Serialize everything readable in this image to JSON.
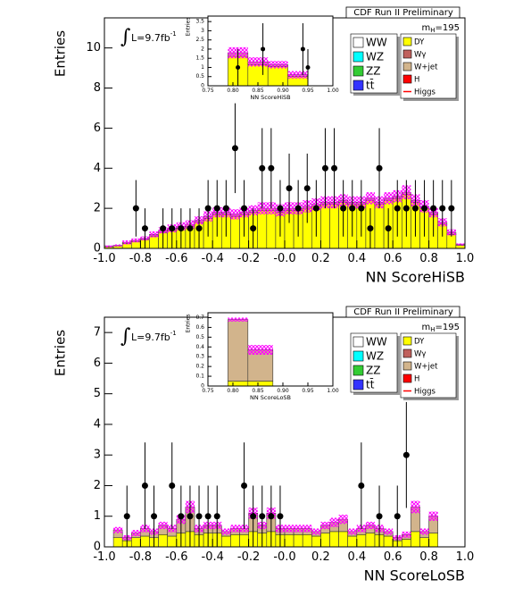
{
  "chart_data": [
    {
      "type": "histogram",
      "title": "CDF Run II Preliminary",
      "xlabel": "NN ScoreHiSB",
      "ylabel": "Entries",
      "luminosity": [
        "∫",
        "L=9.7fb",
        "-1"
      ],
      "mass": [
        "m",
        "H",
        "=195"
      ],
      "legend": "upper right",
      "bins": [
        -1,
        -0.95,
        -0.9,
        -0.85,
        -0.8,
        -0.75,
        -0.7,
        -0.65,
        -0.6,
        -0.55,
        -0.5,
        -0.45,
        -0.4,
        -0.35,
        -0.3,
        -0.25,
        -0.2,
        -0.15,
        -0.1,
        -0.05,
        0,
        0.05,
        0.1,
        0.15,
        0.2,
        0.25,
        0.3,
        0.35,
        0.4,
        0.45,
        0.5,
        0.55,
        0.6,
        0.65,
        0.7,
        0.75,
        0.8,
        0.85,
        0.9,
        0.95,
        1
      ],
      "series": [
        {
          "name": "WW",
          "color": "#ffffff"
        },
        {
          "name": "WZ",
          "color": "#00ffff"
        },
        {
          "name": "ZZ",
          "color": "#33cc33"
        },
        {
          "name": "tt̄",
          "color": "#3333ff"
        },
        {
          "name": "DY",
          "color": "#ffff00",
          "values": [
            0.08,
            0.12,
            0.25,
            0.35,
            0.45,
            0.62,
            0.8,
            0.9,
            1.0,
            1.1,
            1.3,
            1.5,
            1.7,
            1.7,
            1.6,
            1.7,
            1.8,
            1.9,
            1.9,
            1.8,
            1.9,
            1.9,
            2.0,
            2.1,
            2.2,
            2.2,
            2.3,
            2.2,
            2.2,
            2.4,
            2.2,
            2.4,
            2.5,
            2.7,
            2.3,
            2.0,
            1.7,
            1.2,
            0.7,
            0.15
          ]
        },
        {
          "name": "Wγ",
          "color": "#c0605c"
        },
        {
          "name": "W+jet",
          "color": "#d2b48c",
          "values": [
            0.02,
            0.03,
            0.05,
            0.05,
            0.05,
            0.08,
            0.1,
            0.1,
            0.1,
            0.1,
            0.1,
            0.1,
            0.1,
            0.1,
            0.1,
            0.1,
            0.1,
            0.1,
            0.1,
            0.1,
            0.1,
            0.1,
            0.1,
            0.1,
            0.1,
            0.1,
            0.1,
            0.1,
            0.1,
            0.1,
            0.1,
            0.1,
            0.1,
            0.1,
            0.1,
            0.1,
            0.1,
            0.1,
            0.1,
            0.05
          ]
        },
        {
          "name": "H",
          "color": "#ff0000"
        },
        {
          "name": "Higgs",
          "color": "#ff0000",
          "marker": "line"
        }
      ],
      "uncertainty": {
        "color": "#ff00ff",
        "values": [
          0.05,
          0.05,
          0.1,
          0.1,
          0.1,
          0.15,
          0.15,
          0.2,
          0.2,
          0.2,
          0.2,
          0.25,
          0.25,
          0.25,
          0.25,
          0.25,
          0.25,
          0.3,
          0.3,
          0.3,
          0.3,
          0.3,
          0.3,
          0.3,
          0.3,
          0.3,
          0.3,
          0.3,
          0.3,
          0.3,
          0.3,
          0.3,
          0.3,
          0.35,
          0.3,
          0.3,
          0.25,
          0.2,
          0.15,
          0.05
        ]
      },
      "data": {
        "x": [
          -0.825,
          -0.775,
          -0.675,
          -0.625,
          -0.575,
          -0.525,
          -0.475,
          -0.425,
          -0.375,
          -0.325,
          -0.275,
          -0.225,
          -0.175,
          -0.125,
          -0.075,
          -0.025,
          0.025,
          0.075,
          0.125,
          0.175,
          0.225,
          0.275,
          0.325,
          0.375,
          0.425,
          0.475,
          0.525,
          0.575,
          0.625,
          0.675,
          0.725,
          0.775,
          0.825,
          0.875,
          0.925
        ],
        "values": [
          2,
          1,
          1,
          1,
          1,
          1,
          1,
          2,
          2,
          2,
          5,
          2,
          1,
          4,
          4,
          2,
          3,
          2,
          3,
          2,
          4,
          4,
          2,
          2,
          2,
          1,
          4,
          1,
          2,
          2,
          2,
          2,
          2,
          2,
          2
        ],
        "errors": [
          1.41,
          1,
          1,
          1,
          1,
          1,
          1,
          1.41,
          1.41,
          1.41,
          2.24,
          1.41,
          1,
          2,
          2,
          1.41,
          1.73,
          1.41,
          1.73,
          1.41,
          2,
          2,
          1.41,
          1.41,
          1.41,
          1,
          2,
          1,
          1.41,
          1.41,
          1.41,
          1.41,
          1.41,
          1.41,
          1.41
        ]
      },
      "xlim": [
        -1,
        1
      ],
      "ylim": [
        0,
        11.5
      ],
      "xticks": [
        {
          "value": -1,
          "label": "-1.0"
        },
        -0.8,
        -0.6,
        -0.4,
        -0.2,
        {
          "value": 0,
          "label": "-0.0"
        },
        0.2,
        0.4,
        0.6,
        0.8,
        {
          "value": 1,
          "label": "1.0"
        }
      ],
      "yticks": [
        0,
        2,
        4,
        6,
        8,
        10
      ],
      "inset": {
        "title": "NN ScoreHiSB",
        "ylabel": "Entries",
        "bins": [
          0.79,
          0.83,
          0.87,
          0.91,
          0.95
        ],
        "series": [
          {
            "color": "#ffff00",
            "values": [
              1.6,
              1.15,
              1.05,
              0.5
            ]
          },
          {
            "color": "#d2b48c",
            "values": [
              0.2,
              0.15,
              0.1,
              0.1
            ]
          }
        ],
        "uncertainty": {
          "color": "#ff00ff",
          "values": [
            0.3,
            0.25,
            0.2,
            0.2
          ]
        },
        "data": {
          "x": [
            0.81,
            0.86,
            0.94,
            0.95
          ],
          "values": [
            1,
            2,
            2,
            1
          ],
          "errors": [
            1,
            1.41,
            1.41,
            1
          ]
        },
        "xlim": [
          0.75,
          1
        ],
        "ylim": [
          0,
          3.8
        ],
        "xticks": [
          0.75,
          {
            "value": 0.8,
            "label": "0.80"
          },
          0.85,
          {
            "value": 0.9,
            "label": "0.90"
          },
          0.95,
          {
            "value": 1,
            "label": "1.00"
          }
        ],
        "yticks": [
          0,
          0.5,
          1,
          1.5,
          2,
          2.5,
          3,
          3.5
        ]
      }
    },
    {
      "type": "histogram",
      "title": "CDF Run II Preliminary",
      "xlabel": "NN ScoreLoSB",
      "ylabel": "Entries",
      "luminosity": [
        "∫",
        "L=9.7fb",
        "-1"
      ],
      "mass": [
        "m",
        "H",
        "=195"
      ],
      "legend": "upper right",
      "bins": [
        -1,
        -0.95,
        -0.9,
        -0.85,
        -0.8,
        -0.75,
        -0.7,
        -0.65,
        -0.6,
        -0.55,
        -0.5,
        -0.45,
        -0.4,
        -0.35,
        -0.3,
        -0.25,
        -0.2,
        -0.15,
        -0.1,
        -0.05,
        0,
        0.05,
        0.1,
        0.15,
        0.2,
        0.25,
        0.3,
        0.35,
        0.4,
        0.45,
        0.5,
        0.55,
        0.6,
        0.65,
        0.7,
        0.75,
        0.8,
        0.85,
        0.9,
        0.95,
        1
      ],
      "series": [
        {
          "name": "WW",
          "color": "#ffffff"
        },
        {
          "name": "WZ",
          "color": "#00ffff"
        },
        {
          "name": "ZZ",
          "color": "#33cc33"
        },
        {
          "name": "tt̄",
          "color": "#3333ff"
        },
        {
          "name": "DY",
          "color": "#ffff00",
          "values": [
            0,
            0.3,
            0.2,
            0.3,
            0.35,
            0.3,
            0.4,
            0.35,
            0.45,
            0.5,
            0.4,
            0.45,
            0.45,
            0.35,
            0.4,
            0.4,
            0.5,
            0.45,
            0.5,
            0.4,
            0.4,
            0.4,
            0.4,
            0.35,
            0.45,
            0.5,
            0.5,
            0.35,
            0.4,
            0.45,
            0.4,
            0.35,
            0.2,
            0.25,
            0.5,
            0.3,
            0.45,
            0,
            0,
            0
          ]
        },
        {
          "name": "Wγ",
          "color": "#c0605c"
        },
        {
          "name": "W+jet",
          "color": "#d2b48c",
          "values": [
            0,
            0.25,
            0.1,
            0.15,
            0.25,
            0.2,
            0.3,
            0.25,
            0.45,
            0.8,
            0.2,
            0.25,
            0.25,
            0.15,
            0.2,
            0.2,
            0.6,
            0.25,
            0.6,
            0.2,
            0.2,
            0.2,
            0.2,
            0.15,
            0.25,
            0.3,
            0.4,
            0.15,
            0.2,
            0.25,
            0.2,
            0.15,
            0.1,
            0.15,
            0.8,
            0.2,
            0.55,
            0,
            0,
            0
          ]
        },
        {
          "name": "H",
          "color": "#ff0000"
        },
        {
          "name": "Higgs",
          "color": "#ff0000",
          "marker": "line"
        }
      ],
      "uncertainty": {
        "color": "#ff00ff",
        "values": [
          0,
          0.1,
          0.08,
          0.1,
          0.12,
          0.1,
          0.12,
          0.12,
          0.15,
          0.2,
          0.12,
          0.12,
          0.12,
          0.1,
          0.12,
          0.12,
          0.18,
          0.12,
          0.18,
          0.12,
          0.12,
          0.12,
          0.12,
          0.1,
          0.12,
          0.15,
          0.15,
          0.1,
          0.12,
          0.12,
          0.12,
          0.1,
          0.08,
          0.1,
          0.2,
          0.1,
          0.15,
          0,
          0,
          0
        ]
      },
      "data": {
        "x": [
          -0.875,
          -0.775,
          -0.725,
          -0.625,
          -0.575,
          -0.525,
          -0.475,
          -0.425,
          -0.375,
          -0.225,
          -0.175,
          -0.125,
          -0.075,
          -0.025,
          0.425,
          0.525,
          0.625,
          0.675
        ],
        "values": [
          1,
          2,
          1,
          2,
          1,
          1,
          1,
          1,
          1,
          2,
          1,
          1,
          1,
          1,
          2,
          1,
          1,
          3
        ],
        "errors": [
          1,
          1.41,
          1,
          1.41,
          1,
          1,
          1,
          1,
          1,
          1.41,
          1,
          1,
          1,
          1,
          1.41,
          1,
          1,
          1.73
        ]
      },
      "xlim": [
        -1,
        1
      ],
      "ylim": [
        0,
        7.5
      ],
      "xticks": [
        {
          "value": -1,
          "label": "-1.0"
        },
        -0.8,
        -0.6,
        -0.4,
        -0.2,
        {
          "value": 0,
          "label": "-0.0"
        },
        0.2,
        0.4,
        0.6,
        0.8,
        {
          "value": 1,
          "label": "1.0"
        }
      ],
      "yticks": [
        0,
        1,
        2,
        3,
        4,
        5,
        6,
        7
      ],
      "inset": {
        "title": "NN ScoreLoSB",
        "ylabel": "Entries",
        "bins": [
          0.79,
          0.83,
          0.88
        ],
        "series": [
          {
            "color": "#ffff00",
            "values": [
              0.05,
              0.05
            ]
          },
          {
            "color": "#d2b48c",
            "values": [
              0.63,
              0.32
            ]
          }
        ],
        "uncertainty": {
          "color": "#ff00ff",
          "values": [
            0.02,
            0.05
          ]
        },
        "xlim": [
          0.75,
          1
        ],
        "ylim": [
          0,
          0.75
        ],
        "xticks": [
          0.75,
          {
            "value": 0.8,
            "label": "0.80"
          },
          0.85,
          {
            "value": 0.9,
            "label": "0.90"
          },
          0.95,
          {
            "value": 1,
            "label": "1.00"
          }
        ],
        "yticks": [
          0,
          0.1,
          0.2,
          0.3,
          0.4,
          0.5,
          0.6,
          0.7
        ]
      }
    }
  ]
}
